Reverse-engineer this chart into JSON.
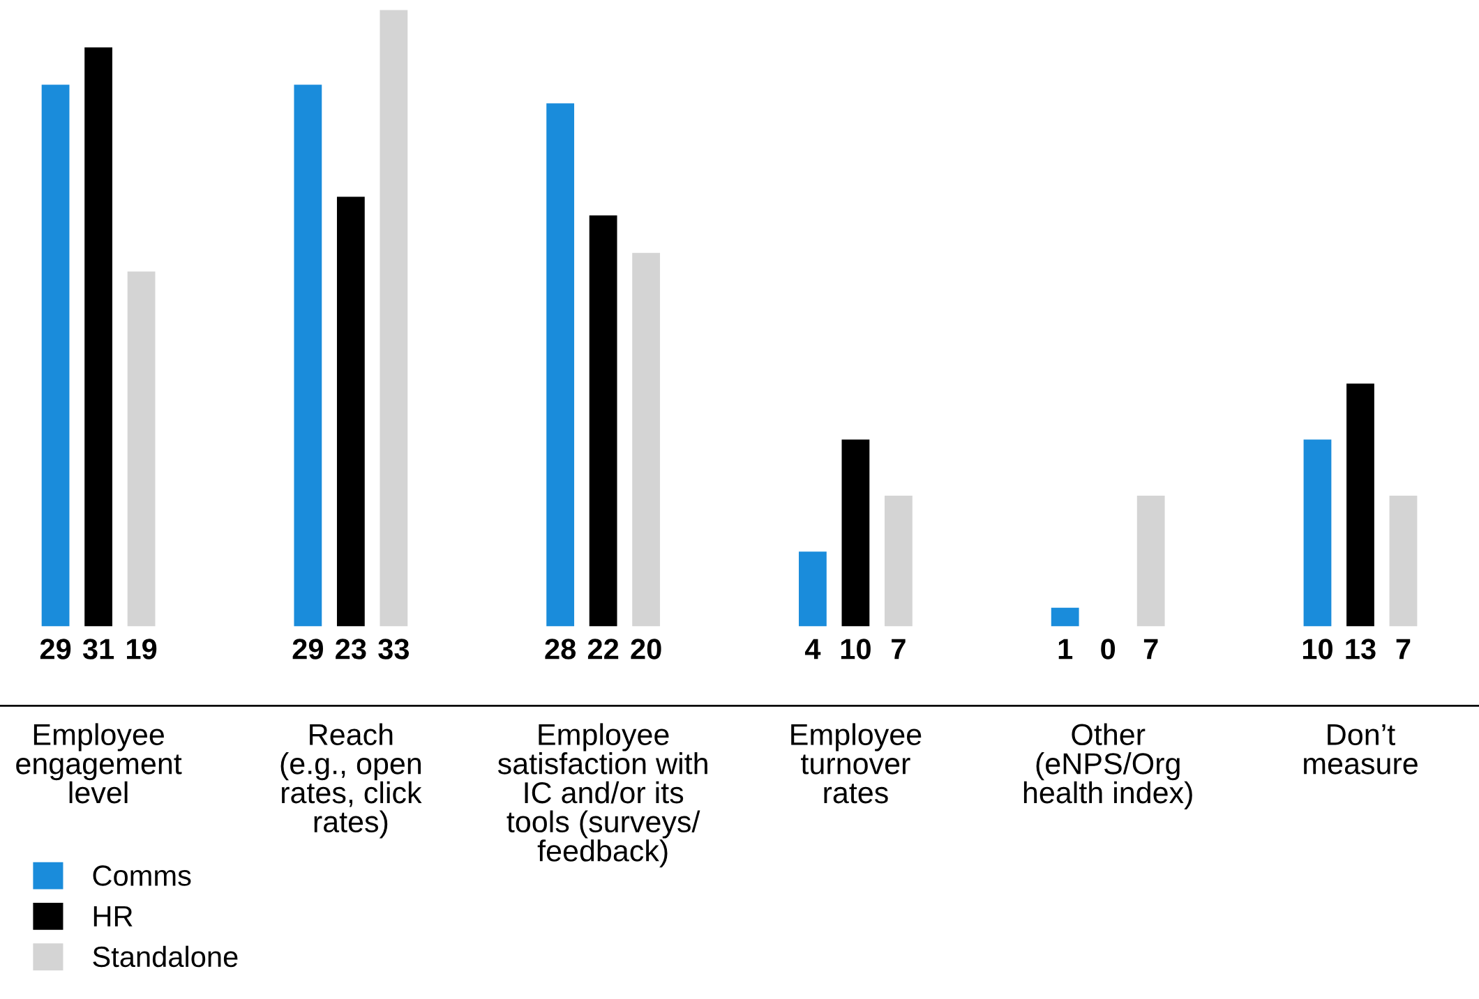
{
  "chart_data": {
    "type": "bar",
    "categories": [
      "Employee\nengagement\nlevel",
      "Reach\n(e.g., open\nrates, click\nrates)",
      "Employee\nsatisfaction with\nIC and/or its\ntools (surveys/\nfeedback)",
      "Employee\nturnover\nrates",
      "Other\n(eNPS/Org\nhealth index)",
      "Don’t\nmeasure"
    ],
    "series": [
      {
        "name": "Comms",
        "color": "#1a8cdb",
        "values": [
          29,
          29,
          28,
          4,
          1,
          10
        ]
      },
      {
        "name": "HR",
        "color": "#000000",
        "values": [
          31,
          23,
          22,
          10,
          0,
          13
        ]
      },
      {
        "name": "Standalone",
        "color": "#d4d4d4",
        "values": [
          19,
          33,
          20,
          7,
          7,
          7
        ]
      }
    ],
    "data_labels": true,
    "legend": "bottom left",
    "grid": false
  }
}
